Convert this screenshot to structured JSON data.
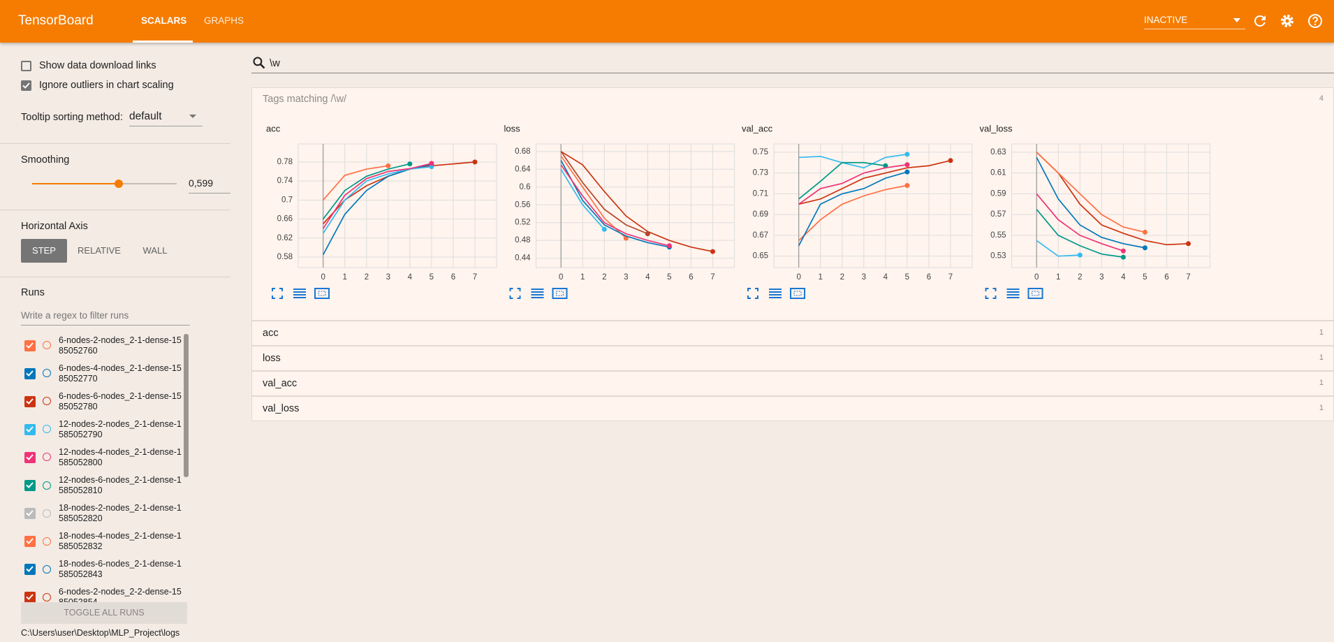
{
  "header": {
    "title": "TensorBoard",
    "tabs": [
      "SCALARS",
      "GRAPHS"
    ],
    "status": "INACTIVE"
  },
  "sidebar": {
    "show_download_links": {
      "label": "Show data download links",
      "checked": false
    },
    "ignore_outliers": {
      "label": "Ignore outliers in chart scaling",
      "checked": true
    },
    "tooltip_sorting": {
      "label": "Tooltip sorting method:",
      "value": "default"
    },
    "smoothing": {
      "label": "Smoothing",
      "value": {
        "value": 0.599,
        "label": "0,599"
      },
      "range": [
        0,
        1
      ]
    },
    "horizontal_axis": {
      "label": "Horizontal Axis",
      "options": [
        "STEP",
        "RELATIVE",
        "WALL"
      ],
      "selected": 0
    },
    "runs": {
      "label": "Runs",
      "filter_placeholder": "Write a regex to filter runs",
      "items": [
        {
          "name": [
            "6-nodes-2-nodes_2-1-dense-15",
            "85052760"
          ],
          "color": "#ff7043",
          "checked": true
        },
        {
          "name": [
            "6-nodes-4-nodes_2-1-dense-15",
            "85052770"
          ],
          "color": "#0077bb",
          "checked": true
        },
        {
          "name": [
            "6-nodes-6-nodes_2-1-dense-15",
            "85052780"
          ],
          "color": "#cc3311",
          "checked": true
        },
        {
          "name": [
            "12-nodes-2-nodes_2-1-dense-1",
            "585052790"
          ],
          "color": "#33bbee",
          "checked": true
        },
        {
          "name": [
            "12-nodes-4-nodes_2-1-dense-1",
            "585052800"
          ],
          "color": "#ee3377",
          "checked": true
        },
        {
          "name": [
            "12-nodes-6-nodes_2-1-dense-1",
            "585052810"
          ],
          "color": "#009988",
          "checked": true
        },
        {
          "name": [
            "18-nodes-2-nodes_2-1-dense-1",
            "585052820"
          ],
          "color": "#bbbbbb",
          "checked": true
        },
        {
          "name": [
            "18-nodes-4-nodes_2-1-dense-1",
            "585052832"
          ],
          "color": "#ff7043",
          "checked": true
        },
        {
          "name": [
            "18-nodes-6-nodes_2-1-dense-1",
            "585052843"
          ],
          "color": "#0077bb",
          "checked": true
        },
        {
          "name": [
            "6-nodes-2-nodes_2-2-dense-15",
            "85052854"
          ],
          "color": "#cc3311",
          "checked": true
        }
      ],
      "toggle": "TOGGLE ALL RUNS",
      "logdir": "C:\\Users\\user\\Desktop\\MLP_Project\\logs"
    }
  },
  "main": {
    "search": "\\w",
    "tags_header": {
      "label": "Tags matching /\\w/",
      "count": 4
    },
    "charts": [
      {
        "type": "line",
        "title": "acc",
        "x": [
          0,
          1,
          2,
          3,
          4,
          5,
          6,
          7
        ],
        "xlim": [
          -1.15,
          8
        ],
        "xticks": [
          0,
          1,
          2,
          3,
          4,
          5,
          6,
          7
        ],
        "ylim": [
          0.558,
          0.818
        ],
        "yticks": [
          0.58,
          0.62,
          0.66,
          0.7,
          0.74,
          0.78
        ],
        "grid": true,
        "series": [
          {
            "color": "#cc3311",
            "values": [
              0.65,
              0.7,
              0.73,
              0.75,
              0.765,
              0.772,
              0.776,
              0.78
            ]
          },
          {
            "color": "#0077bb",
            "values": [
              0.585,
              0.67,
              0.72,
              0.75,
              0.765,
              0.775,
              null,
              null
            ]
          },
          {
            "color": "#ff7043",
            "values": [
              0.7,
              0.752,
              0.765,
              0.772,
              null,
              null,
              null,
              null
            ]
          },
          {
            "color": "#33bbee",
            "values": [
              0.63,
              0.7,
              0.74,
              0.755,
              0.765,
              0.77,
              null,
              null
            ]
          },
          {
            "color": "#009988",
            "values": [
              0.66,
              0.72,
              0.75,
              0.765,
              0.776,
              null,
              null,
              null
            ]
          },
          {
            "color": "#ee3377",
            "values": [
              0.64,
              0.71,
              0.745,
              0.76,
              0.766,
              0.777,
              null,
              null
            ]
          }
        ]
      },
      {
        "type": "line",
        "title": "loss",
        "x": [
          0,
          1,
          2,
          3,
          4,
          5,
          6,
          7
        ],
        "xlim": [
          -1.15,
          8
        ],
        "xticks": [
          0,
          1,
          2,
          3,
          4,
          5,
          6,
          7
        ],
        "ylim": [
          0.419,
          0.697
        ],
        "yticks": [
          0.44,
          0.48,
          0.52,
          0.56,
          0.6,
          0.64,
          0.68
        ],
        "grid": true,
        "series": [
          {
            "color": "#cc3311",
            "values": [
              0.68,
              0.65,
              0.59,
              0.535,
              0.5,
              0.48,
              0.465,
              0.455
            ]
          },
          {
            "color": "#ff7043",
            "values": [
              0.67,
              0.6,
              0.53,
              0.485,
              null,
              null,
              null,
              null
            ]
          },
          {
            "color": "#0077bb",
            "values": [
              0.66,
              0.57,
              0.515,
              0.49,
              0.475,
              0.465,
              null,
              null
            ]
          },
          {
            "color": "#33bbee",
            "values": [
              0.64,
              0.56,
              0.505,
              null,
              null,
              null,
              null,
              null
            ]
          },
          {
            "color": "#ee3377",
            "values": [
              0.65,
              0.58,
              0.52,
              0.495,
              0.48,
              0.468,
              null,
              null
            ]
          },
          {
            "color": "#b5452a",
            "values": [
              0.68,
              0.61,
              0.55,
              0.515,
              0.495,
              null,
              null,
              null
            ]
          }
        ]
      },
      {
        "type": "line",
        "title": "val_acc",
        "x": [
          0,
          1,
          2,
          3,
          4,
          5,
          6,
          7
        ],
        "xlim": [
          -1.15,
          8
        ],
        "xticks": [
          0,
          1,
          2,
          3,
          4,
          5,
          6,
          7
        ],
        "ylim": [
          0.639,
          0.758
        ],
        "yticks": [
          0.65,
          0.67,
          0.69,
          0.71,
          0.73,
          0.75
        ],
        "grid": true,
        "series": [
          {
            "color": "#cc3311",
            "values": [
              0.7,
              0.705,
              0.715,
              0.725,
              0.73,
              0.735,
              0.737,
              0.742
            ]
          },
          {
            "color": "#ff7043",
            "values": [
              0.665,
              0.685,
              0.7,
              0.708,
              0.714,
              0.718,
              null,
              null
            ]
          },
          {
            "color": "#33bbee",
            "values": [
              0.745,
              0.746,
              0.74,
              0.735,
              0.745,
              0.748,
              null,
              null
            ]
          },
          {
            "color": "#0077bb",
            "values": [
              0.66,
              0.7,
              0.71,
              0.715,
              0.725,
              0.731,
              null,
              null
            ]
          },
          {
            "color": "#009988",
            "values": [
              0.705,
              0.722,
              0.74,
              0.74,
              0.737,
              null,
              null,
              null
            ]
          },
          {
            "color": "#ee3377",
            "values": [
              0.7,
              0.715,
              0.72,
              0.73,
              0.735,
              0.738,
              null,
              null
            ]
          }
        ]
      },
      {
        "type": "line",
        "title": "val_loss",
        "x": [
          0,
          1,
          2,
          3,
          4,
          5,
          6,
          7
        ],
        "xlim": [
          -1.15,
          8
        ],
        "xticks": [
          0,
          1,
          2,
          3,
          4,
          5,
          6,
          7
        ],
        "ylim": [
          0.519,
          0.638
        ],
        "yticks": [
          0.53,
          0.55,
          0.57,
          0.59,
          0.61,
          0.63
        ],
        "grid": true,
        "series": [
          {
            "color": "#cc3311",
            "values": [
              0.63,
              0.61,
              0.58,
              0.56,
              0.552,
              0.545,
              0.541,
              0.542
            ]
          },
          {
            "color": "#ff7043",
            "values": [
              0.63,
              0.61,
              0.59,
              0.57,
              0.558,
              0.553,
              null,
              null
            ]
          },
          {
            "color": "#0077bb",
            "values": [
              0.625,
              0.585,
              0.56,
              0.548,
              0.542,
              0.538,
              null,
              null
            ]
          },
          {
            "color": "#33bbee",
            "values": [
              0.545,
              0.53,
              0.531,
              null,
              null,
              null,
              null,
              null
            ]
          },
          {
            "color": "#009988",
            "values": [
              0.575,
              0.55,
              0.54,
              0.532,
              0.529,
              null,
              null,
              null
            ]
          },
          {
            "color": "#ee3377",
            "values": [
              0.59,
              0.565,
              0.55,
              0.542,
              0.535,
              null,
              null,
              null
            ]
          }
        ]
      }
    ],
    "panes": [
      {
        "title": "acc",
        "count": 1
      },
      {
        "title": "loss",
        "count": 1
      },
      {
        "title": "val_acc",
        "count": 1
      },
      {
        "title": "val_loss",
        "count": 1
      }
    ]
  }
}
